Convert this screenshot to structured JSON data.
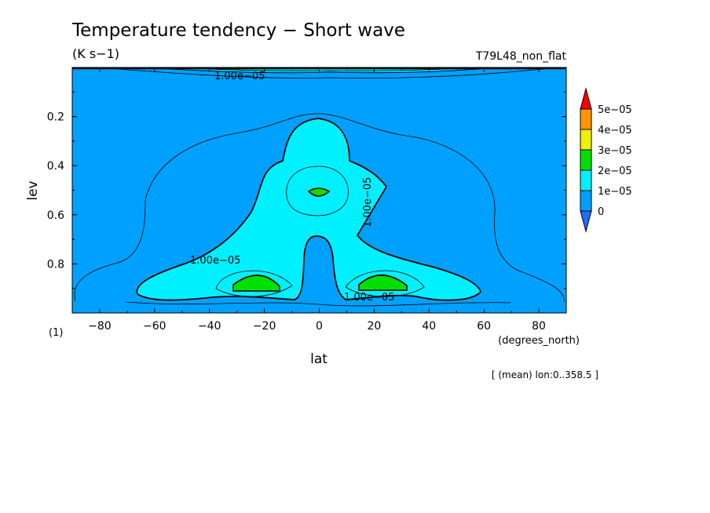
{
  "chart_data": {
    "type": "contour",
    "title": "Temperature tendency − Short wave",
    "units": "(K s−1)",
    "case_name": "T79L48_non_flat",
    "xlabel": "lat",
    "x_units": "(degrees_north)",
    "ylabel": "lev",
    "y_units": "(1)",
    "xlim": [
      -90,
      90
    ],
    "ylim": [
      1.0,
      0.0
    ],
    "x_ticks": [
      -80,
      -60,
      -40,
      -20,
      0,
      20,
      40,
      60,
      80
    ],
    "x_tick_labels": [
      "−80",
      "−60",
      "−40",
      "−20",
      "0",
      "20",
      "40",
      "60",
      "80"
    ],
    "y_ticks": [
      0.2,
      0.4,
      0.6,
      0.8
    ],
    "y_tick_labels": [
      "0.2",
      "0.4",
      "0.6",
      "0.8"
    ],
    "note": "[ (mean) lon:0..358.5 ]",
    "contour_labels": [
      "1.00e−05",
      "1.00e−05",
      "1.00e−05",
      "1.00e−05"
    ],
    "colorbar": {
      "levels": [
        0,
        1e-05,
        2e-05,
        3e-05,
        4e-05,
        5e-05
      ],
      "labels": [
        "0",
        "1e−05",
        "2e−05",
        "3e−05",
        "4e−05",
        "5e−05"
      ],
      "colors": [
        "#1e6eff",
        "#00a0ff",
        "#00f0ff",
        "#00e000",
        "#f0f000",
        "#ff9600",
        "#ff0000"
      ]
    },
    "fill_colors": {
      "below_0": "#1e6eff",
      "0_to_1e-05": "#00a0ff",
      "1e-05_to_2e-05": "#00f0ff",
      "2e-05_to_3e-05": "#00e000"
    },
    "features": [
      {
        "name": "tropical plume 1e-05 to 2e-05",
        "lat_range": [
          -67,
          67
        ],
        "lev_range": [
          0.21,
          0.93
        ]
      },
      {
        "name": "upper maximum 2e-05 to 3e-05",
        "lat_center": 0,
        "lev_center": 0.51
      },
      {
        "name": "lower maximum 2e-05 to 3e-05",
        "lat_center": -22,
        "lev_center": 0.87
      },
      {
        "name": "lower maximum 2e-05 to 3e-05",
        "lat_center": 22,
        "lev_center": 0.87
      }
    ]
  }
}
